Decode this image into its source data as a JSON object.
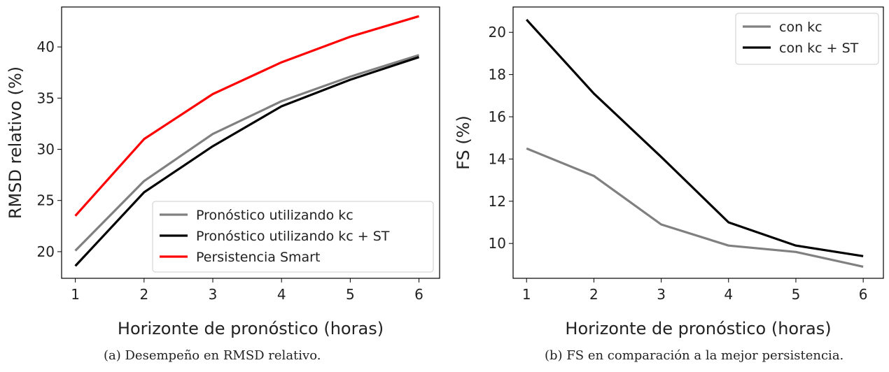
{
  "chart_data": [
    {
      "type": "line",
      "panel": "a",
      "caption": "(a) Desempeño en RMSD relativo.",
      "xlabel": "Horizonte de pronóstico (horas)",
      "ylabel": "RMSD relativo (%)",
      "x": [
        1,
        2,
        3,
        4,
        5,
        6
      ],
      "xlim": [
        0.8,
        6.3
      ],
      "ylim": [
        17.4,
        43.9
      ],
      "xticks": [
        "1",
        "2",
        "3",
        "4",
        "5",
        "6"
      ],
      "yticks": [
        20,
        25,
        30,
        35,
        40
      ],
      "grid": false,
      "legend": "lower-right",
      "series": [
        {
          "name": "Pronóstico utilizando kc",
          "color": "#808080",
          "values": [
            20.1,
            26.9,
            31.5,
            34.7,
            37.1,
            39.2
          ]
        },
        {
          "name": "Pronóstico utilizando kc + ST",
          "color": "#000000",
          "values": [
            18.6,
            25.8,
            30.3,
            34.2,
            36.8,
            39.0
          ]
        },
        {
          "name": "Persistencia Smart",
          "color": "#ff0000",
          "values": [
            23.5,
            31.0,
            35.4,
            38.5,
            41.0,
            43.0
          ]
        }
      ]
    },
    {
      "type": "line",
      "panel": "b",
      "caption": "(b) FS en comparación a la mejor persistencia.",
      "xlabel": "Horizonte de pronóstico (horas)",
      "ylabel": "FS (%)",
      "x": [
        1,
        2,
        3,
        4,
        5,
        6
      ],
      "xlim": [
        0.8,
        6.3
      ],
      "ylim": [
        8.35,
        21.2
      ],
      "xticks": [
        "1",
        "2",
        "3",
        "4",
        "5",
        "6"
      ],
      "yticks": [
        10,
        12,
        14,
        16,
        18,
        20
      ],
      "grid": false,
      "legend": "top-right",
      "series": [
        {
          "name": "con kc",
          "color": "#808080",
          "values": [
            14.5,
            13.2,
            10.9,
            9.9,
            9.6,
            8.9
          ]
        },
        {
          "name": "con kc + ST",
          "color": "#000000",
          "values": [
            20.6,
            17.1,
            14.1,
            11.0,
            9.9,
            9.4
          ]
        }
      ]
    }
  ]
}
